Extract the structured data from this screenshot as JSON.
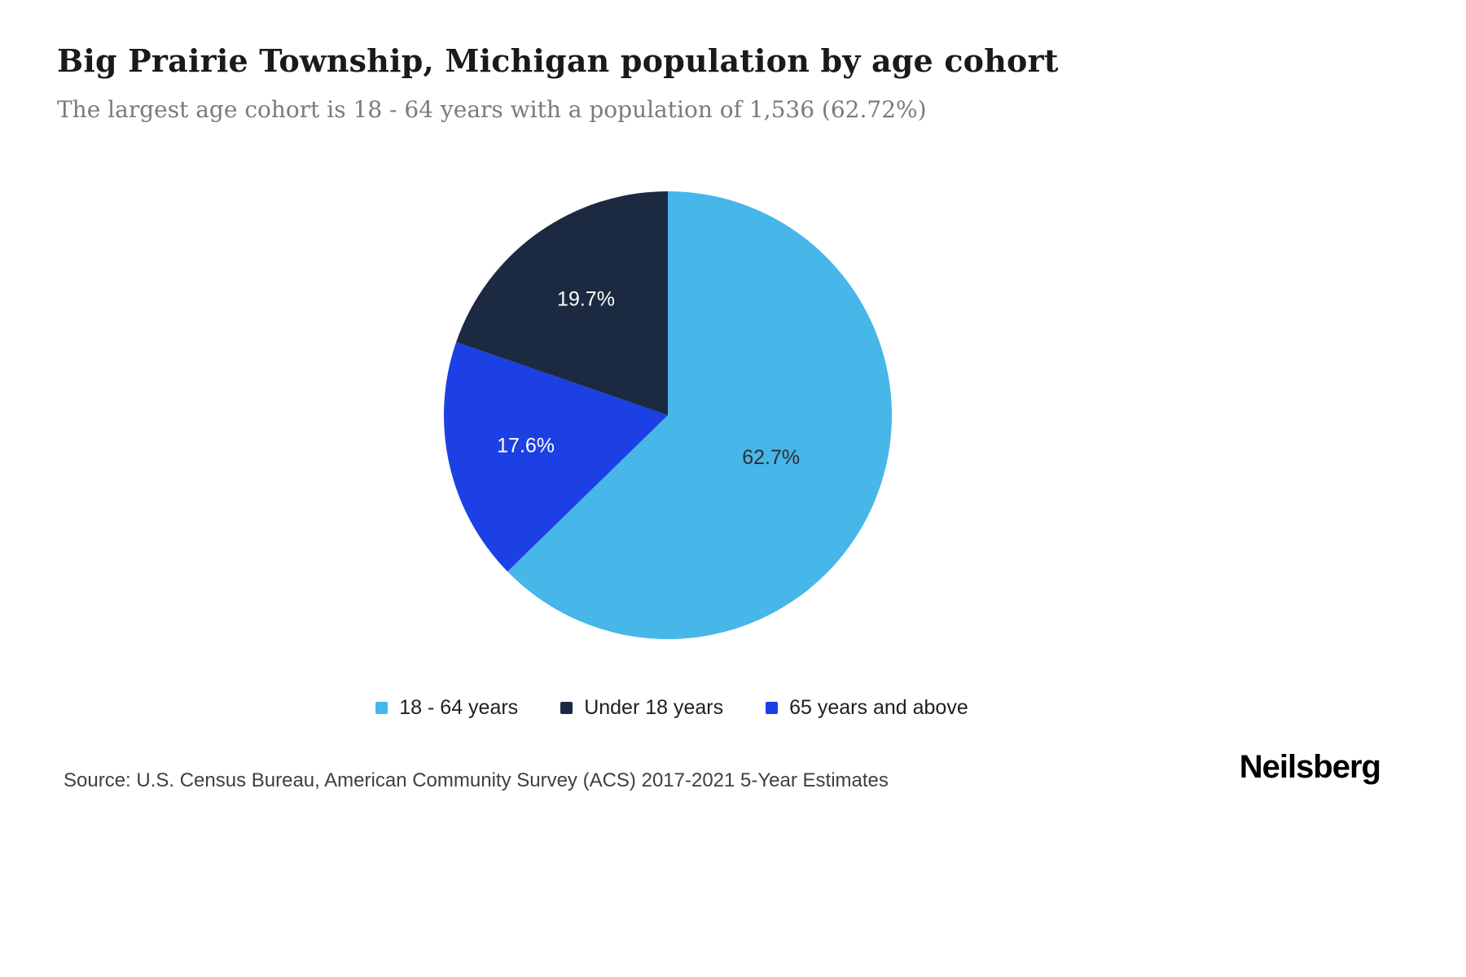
{
  "page": {
    "title": "Big Prairie Township, Michigan population by age cohort",
    "subtitle": "The largest age cohort is 18 - 64 years with a population of 1,536 (62.72%)",
    "source_note": "Source: U.S. Census Bureau, American Community Survey (ACS) 2017-2021 5-Year Estimates",
    "brand": "Neilsberg"
  },
  "chart_data": {
    "type": "pie",
    "title": "Big Prairie Township, Michigan population by age cohort",
    "unit": "percent",
    "start_angle_deg": 0,
    "direction": "clockwise",
    "legend_position": "bottom",
    "largest_cohort": {
      "label": "18 - 64 years",
      "population": "1,536",
      "share": "62.72%"
    },
    "slices": [
      {
        "label": "18 - 64 years",
        "value": 62.7,
        "display": "62.7%",
        "color": "#47b6e9",
        "label_color": "#2e2e2e",
        "label_r": 0.5
      },
      {
        "label": "65 years and above",
        "value": 17.6,
        "display": "17.6%",
        "color": "#1c40e3",
        "label_color": "#ffffff",
        "label_r": 0.65
      },
      {
        "label": "Under 18 years",
        "value": 19.7,
        "display": "19.7%",
        "color": "#1b2a41",
        "label_color": "#ffffff",
        "label_r": 0.63
      }
    ],
    "legend": [
      {
        "label": "18 - 64 years",
        "color": "#47b6e9"
      },
      {
        "label": "Under 18 years",
        "color": "#1b2a41"
      },
      {
        "label": "65 years and above",
        "color": "#1c40e3"
      }
    ]
  }
}
